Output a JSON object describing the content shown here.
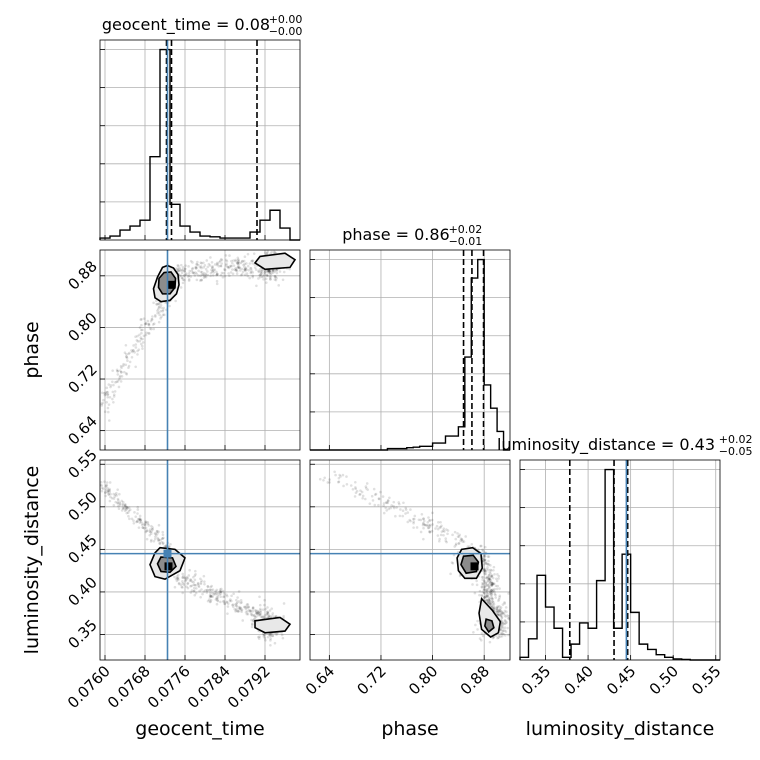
{
  "chart_data": {
    "type": "corner",
    "parameters": [
      "geocent_time",
      "phase",
      "luminosity_distance"
    ],
    "truths": {
      "geocent_time": 0.07725,
      "luminosity_distance": 0.445
    },
    "axes": {
      "geocent_time": {
        "label": "geocent_time",
        "lim": [
          0.0759,
          0.0799
        ],
        "ticks": [
          0.076,
          0.0768,
          0.0776,
          0.0784,
          0.0792
        ],
        "tick_labels": [
          "0.0760",
          "0.0768",
          "0.0776",
          "0.0784",
          "0.0792"
        ]
      },
      "phase": {
        "label": "phase",
        "lim": [
          0.61,
          0.92
        ],
        "ticks": [
          0.64,
          0.72,
          0.8,
          0.88
        ],
        "tick_labels": [
          "0.64",
          "0.72",
          "0.80",
          "0.88"
        ]
      },
      "luminosity_distance": {
        "label": "luminosity_distance",
        "lim": [
          0.32,
          0.555
        ],
        "ticks": [
          0.35,
          0.4,
          0.45,
          0.5,
          0.55
        ],
        "tick_labels": [
          "0.35",
          "0.40",
          "0.45",
          "0.50",
          "0.55"
        ]
      }
    },
    "marginals": [
      {
        "param": "geocent_time",
        "title": "geocent_time = 0.08",
        "title_plus": "+0.00",
        "title_minus": "−0.00",
        "quantiles": [
          0.07723,
          0.07733,
          0.07904
        ],
        "bin_edges": [
          0.0759,
          0.0761,
          0.0763,
          0.0765,
          0.0767,
          0.0769,
          0.0771,
          0.0773,
          0.0775,
          0.0777,
          0.0779,
          0.0781,
          0.0783,
          0.0785,
          0.0787,
          0.0789,
          0.0791,
          0.0793,
          0.0795,
          0.0797,
          0.0799
        ],
        "counts": [
          0.5,
          1,
          2.5,
          3.5,
          5,
          21,
          48,
          9,
          3.5,
          2,
          1,
          0.8,
          0.5,
          0.5,
          0.5,
          2,
          5,
          7.5,
          3,
          0
        ]
      },
      {
        "param": "phase",
        "title": "phase = 0.86",
        "title_plus": "+0.02",
        "title_minus": "−0.01",
        "quantiles": [
          0.848,
          0.861,
          0.879
        ],
        "bin_edges": [
          0.61,
          0.62,
          0.63,
          0.64,
          0.65,
          0.66,
          0.67,
          0.68,
          0.69,
          0.7,
          0.71,
          0.72,
          0.73,
          0.74,
          0.75,
          0.76,
          0.77,
          0.78,
          0.79,
          0.8,
          0.81,
          0.82,
          0.83,
          0.84,
          0.85,
          0.86,
          0.87,
          0.88,
          0.89,
          0.9,
          0.91,
          0.92
        ],
        "counts": [
          0,
          0,
          0,
          0,
          0,
          0,
          0,
          0,
          0,
          0,
          0,
          0,
          0.3,
          0.3,
          0.3,
          0.5,
          0.6,
          0.8,
          0.8,
          1.5,
          1.5,
          3,
          3,
          5,
          20,
          37,
          41,
          14,
          9,
          4,
          0
        ]
      },
      {
        "param": "luminosity_distance",
        "title": "luminosity_distance = 0.43",
        "title_plus": "+0.02",
        "title_minus": "−0.05",
        "quantiles": [
          0.3785,
          0.4305,
          0.4465
        ],
        "bin_edges": [
          0.32,
          0.33,
          0.34,
          0.35,
          0.36,
          0.37,
          0.38,
          0.39,
          0.4,
          0.41,
          0.42,
          0.43,
          0.44,
          0.45,
          0.46,
          0.47,
          0.48,
          0.49,
          0.5,
          0.51,
          0.52,
          0.53,
          0.54,
          0.555
        ],
        "counts": [
          0.5,
          4,
          16,
          10,
          6,
          0.5,
          3,
          7,
          6,
          15,
          36,
          6,
          20,
          9,
          3,
          2,
          1,
          0.5,
          0.2,
          0.1,
          0,
          0,
          0
        ]
      }
    ],
    "scatter": [
      {
        "x_param": "geocent_time",
        "y_param": "phase",
        "contours": [
          {
            "level": "outer",
            "x": [
              0.07715,
              0.07725,
              0.07737,
              0.07746,
              0.07748,
              0.07743,
              0.0773,
              0.07712,
              0.077,
              0.07697,
              0.07705
            ],
            "y": [
              0.893,
              0.896,
              0.892,
              0.882,
              0.866,
              0.852,
              0.842,
              0.84,
              0.846,
              0.86,
              0.878
            ]
          },
          {
            "level": "inner",
            "x": [
              0.07718,
              0.07732,
              0.07741,
              0.0774,
              0.0773,
              0.07715,
              0.07707,
              0.07708
            ],
            "y": [
              0.885,
              0.886,
              0.876,
              0.862,
              0.852,
              0.852,
              0.862,
              0.876
            ]
          },
          {
            "level": "outer",
            "x": [
              0.0791,
              0.0796,
              0.0798,
              0.0797,
              0.0792,
              0.079
            ],
            "y": [
              0.91,
              0.915,
              0.905,
              0.893,
              0.89,
              0.9
            ]
          }
        ]
      },
      {
        "x_param": "geocent_time",
        "y_param": "luminosity_distance",
        "contours": [
          {
            "level": "outer",
            "x": [
              0.0771,
              0.0774,
              0.0776,
              0.0775,
              0.0772,
              0.077,
              0.0769,
              0.077
            ],
            "y": [
              0.452,
              0.45,
              0.44,
              0.425,
              0.415,
              0.418,
              0.432,
              0.446
            ]
          },
          {
            "level": "inner",
            "x": [
              0.07712,
              0.07735,
              0.07742,
              0.0773,
              0.07712,
              0.07705
            ],
            "y": [
              0.441,
              0.44,
              0.43,
              0.423,
              0.424,
              0.433
            ]
          },
          {
            "level": "outer",
            "x": [
              0.079,
              0.0795,
              0.0797,
              0.0796,
              0.0792,
              0.079
            ],
            "y": [
              0.366,
              0.37,
              0.362,
              0.354,
              0.352,
              0.358
            ]
          }
        ]
      },
      {
        "x_param": "phase",
        "y_param": "luminosity_distance",
        "contours": [
          {
            "level": "outer",
            "x": [
              0.845,
              0.862,
              0.875,
              0.877,
              0.868,
              0.85,
              0.84,
              0.838
            ],
            "y": [
              0.45,
              0.452,
              0.445,
              0.428,
              0.416,
              0.416,
              0.425,
              0.44
            ]
          },
          {
            "level": "inner",
            "x": [
              0.848,
              0.863,
              0.871,
              0.868,
              0.852,
              0.844
            ],
            "y": [
              0.442,
              0.443,
              0.435,
              0.424,
              0.422,
              0.432
            ]
          },
          {
            "level": "outer",
            "x": [
              0.876,
              0.893,
              0.905,
              0.902,
              0.89,
              0.876,
              0.872
            ],
            "y": [
              0.392,
              0.378,
              0.365,
              0.352,
              0.347,
              0.356,
              0.375
            ]
          },
          {
            "level": "inner",
            "x": [
              0.883,
              0.892,
              0.895,
              0.887,
              0.881
            ],
            "y": [
              0.368,
              0.366,
              0.358,
              0.353,
              0.36
            ]
          }
        ]
      }
    ]
  }
}
